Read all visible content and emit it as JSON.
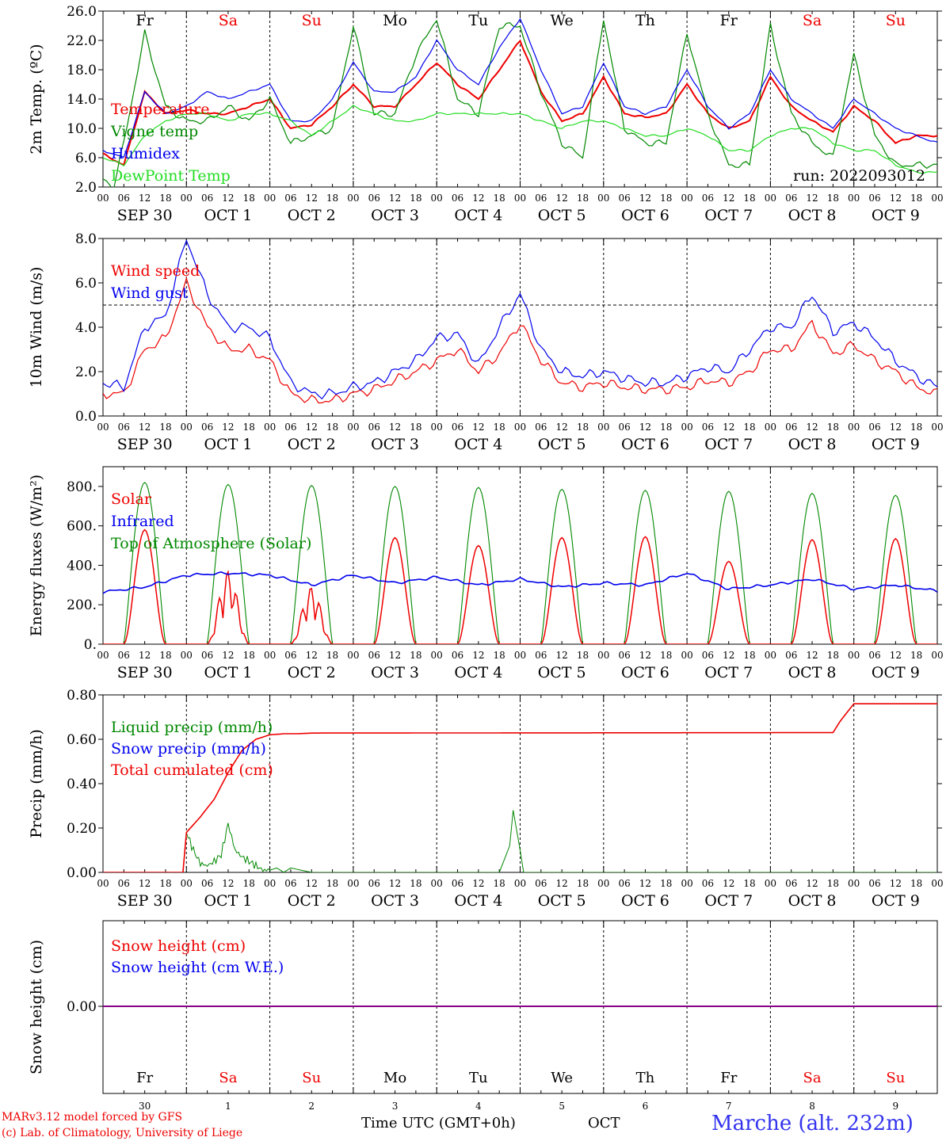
{
  "footer": {
    "credit_line1": "MARv3.12 model forced by GFS",
    "credit_line2": "(c) Lab. of Climatology, University of Liege",
    "time_label": "Time UTC (GMT+0h)",
    "month_label": "OCT",
    "station": "Marche (alt. 232m)"
  },
  "colors": {
    "red": "#ee0000",
    "blue": "#0000ee",
    "green": "#008800",
    "lightgreen": "#22dd22",
    "purple": "#880088",
    "weekend": "#ee0000",
    "weekday": "#000000"
  },
  "hour_ticks": [
    "00",
    "06",
    "12",
    "18"
  ],
  "days": [
    {
      "dow": "Fr",
      "date": "SEP 30",
      "num": "30",
      "weekend": false
    },
    {
      "dow": "Sa",
      "date": "OCT  1",
      "num": "1",
      "weekend": true
    },
    {
      "dow": "Su",
      "date": "OCT  2",
      "num": "2",
      "weekend": true
    },
    {
      "dow": "Mo",
      "date": "OCT  3",
      "num": "3",
      "weekend": false
    },
    {
      "dow": "Tu",
      "date": "OCT  4",
      "num": "4",
      "weekend": false
    },
    {
      "dow": "We",
      "date": "OCT  5",
      "num": "5",
      "weekend": false
    },
    {
      "dow": "Th",
      "date": "OCT  6",
      "num": "6",
      "weekend": false
    },
    {
      "dow": "Fr",
      "date": "OCT  7",
      "num": "7",
      "weekend": false
    },
    {
      "dow": "Sa",
      "date": "OCT  8",
      "num": "8",
      "weekend": true
    },
    {
      "dow": "Su",
      "date": "OCT  9",
      "num": "9",
      "weekend": true
    }
  ],
  "chart_data": [
    {
      "type": "line",
      "ylabel": "2m Temp. (ºC)",
      "ylim": [
        2,
        26
      ],
      "yticks": [
        "2.0",
        "6.0",
        "10.0",
        "14.0",
        "18.0",
        "22.0",
        "26.0"
      ],
      "xlim_hours": [
        0,
        240
      ],
      "annotation": "run: 2022093012",
      "series": [
        {
          "name": "Temperature",
          "color": "red",
          "x": [
            0,
            6,
            12,
            18,
            24,
            30,
            36,
            42,
            48,
            54,
            60,
            66,
            72,
            78,
            84,
            90,
            96,
            102,
            108,
            114,
            120,
            126,
            132,
            138,
            144,
            150,
            156,
            162,
            168,
            174,
            180,
            186,
            192,
            198,
            204,
            210,
            216,
            222,
            228,
            234,
            240
          ],
          "y": [
            6.5,
            5,
            15,
            12,
            12.5,
            12,
            12,
            13,
            14,
            10,
            10.5,
            13,
            16,
            13,
            13,
            16,
            19,
            16,
            14,
            18,
            22,
            15,
            11,
            12,
            17,
            12,
            11.5,
            12,
            16,
            12,
            10,
            11,
            17,
            13,
            11,
            9.5,
            13,
            11,
            8,
            9,
            9
          ]
        },
        {
          "name": "Vigne temp",
          "color": "green",
          "x": [
            0,
            3,
            6,
            12,
            18,
            24,
            30,
            36,
            42,
            48,
            54,
            60,
            66,
            72,
            78,
            84,
            90,
            96,
            102,
            108,
            114,
            120,
            126,
            132,
            138,
            144,
            150,
            156,
            162,
            168,
            174,
            180,
            186,
            192,
            198,
            204,
            210,
            216,
            222,
            228,
            234,
            240
          ],
          "y": [
            3,
            2,
            8,
            23,
            13,
            11,
            11,
            13,
            11,
            14,
            8,
            9,
            10,
            24,
            12,
            12,
            20,
            25,
            14,
            12,
            24,
            24,
            15,
            8,
            6,
            25,
            10,
            8,
            8,
            23,
            12,
            5,
            5,
            24,
            12,
            8,
            6,
            20,
            9,
            5,
            5,
            5
          ]
        },
        {
          "name": "Humidex",
          "color": "blue",
          "x": [
            0,
            6,
            12,
            18,
            24,
            30,
            36,
            42,
            48,
            54,
            60,
            66,
            72,
            78,
            84,
            90,
            96,
            102,
            108,
            114,
            120,
            126,
            132,
            138,
            144,
            150,
            156,
            162,
            168,
            174,
            180,
            186,
            192,
            198,
            204,
            210,
            216,
            222,
            228,
            234,
            240
          ],
          "y": [
            7,
            6,
            15,
            12,
            13,
            15,
            14,
            15,
            16,
            11,
            11,
            14,
            19,
            15,
            15,
            17,
            22,
            18,
            16,
            21,
            25,
            18,
            12,
            13,
            19,
            13,
            12,
            13,
            18,
            13,
            10,
            12,
            18,
            14,
            12,
            10,
            14,
            12,
            10,
            9,
            8
          ]
        },
        {
          "name": "DewPoint Temp",
          "color": "lightgreen",
          "x": [
            0,
            6,
            12,
            18,
            24,
            30,
            36,
            42,
            48,
            54,
            60,
            66,
            72,
            78,
            84,
            90,
            96,
            102,
            108,
            114,
            120,
            126,
            132,
            138,
            144,
            150,
            156,
            162,
            168,
            174,
            180,
            186,
            192,
            198,
            204,
            210,
            216,
            222,
            228,
            234,
            240
          ],
          "y": [
            6,
            5,
            9,
            11,
            12,
            12,
            11,
            12,
            12,
            11,
            9,
            11,
            13,
            12,
            11,
            11,
            12,
            12,
            12,
            12,
            12,
            11,
            10,
            11,
            11,
            10,
            9,
            9,
            10,
            9,
            7,
            7,
            9,
            10,
            10,
            8,
            7,
            7,
            5,
            4,
            4
          ]
        }
      ]
    },
    {
      "type": "line",
      "ylabel": "10m Wind (m/s)",
      "ylim": [
        0,
        8
      ],
      "yticks": [
        "0.0",
        "2.0",
        "4.0",
        "6.0",
        "8.0"
      ],
      "reference_line": 5,
      "xlim_hours": [
        0,
        240
      ],
      "series": [
        {
          "name": "Wind speed",
          "color": "red",
          "x": [
            0,
            6,
            12,
            18,
            24,
            30,
            36,
            42,
            48,
            54,
            60,
            66,
            72,
            78,
            84,
            90,
            96,
            102,
            108,
            114,
            120,
            126,
            132,
            138,
            144,
            150,
            156,
            162,
            168,
            174,
            180,
            186,
            192,
            198,
            204,
            210,
            216,
            222,
            228,
            234,
            240
          ],
          "y": [
            1,
            1,
            3,
            3.5,
            6,
            4,
            3,
            3,
            2.5,
            1,
            0.7,
            0.7,
            1,
            1.2,
            1.6,
            2,
            2.5,
            3,
            2,
            2.8,
            4.2,
            2.5,
            1.5,
            1.3,
            1.5,
            1.3,
            1.2,
            1.2,
            1.3,
            1.6,
            1.5,
            2,
            3,
            3,
            4.2,
            2.8,
            3.2,
            2.5,
            2,
            1.3,
            1
          ]
        },
        {
          "name": "Wind gust",
          "color": "blue",
          "x": [
            0,
            6,
            12,
            18,
            24,
            30,
            36,
            42,
            48,
            54,
            60,
            66,
            72,
            78,
            84,
            90,
            96,
            102,
            108,
            114,
            120,
            126,
            132,
            138,
            144,
            150,
            156,
            162,
            168,
            174,
            180,
            186,
            192,
            198,
            204,
            210,
            216,
            222,
            228,
            234,
            240
          ],
          "y": [
            1.5,
            1.3,
            4,
            4.5,
            8,
            5.5,
            4,
            4,
            3.5,
            1.5,
            1,
            1,
            1.3,
            1.5,
            2,
            2.5,
            3.5,
            3.7,
            2.3,
            4,
            5.5,
            3,
            2,
            1.8,
            2,
            1.7,
            1.5,
            1.5,
            1.8,
            2.2,
            2,
            3,
            4,
            4,
            5.5,
            3.8,
            4.2,
            3.5,
            2.5,
            1.8,
            1.3
          ]
        }
      ]
    },
    {
      "type": "line",
      "ylabel": "Energy fluxes (W/m²)",
      "ylim": [
        0,
        900
      ],
      "yticks": [
        "0.",
        "200.",
        "400.",
        "600.",
        "800."
      ],
      "xlim_hours": [
        0,
        240
      ],
      "solar_peak": [
        580,
        370,
        290,
        540,
        500,
        540,
        545,
        420,
        530,
        535
      ],
      "toa_peak": [
        820,
        810,
        805,
        800,
        795,
        785,
        780,
        775,
        765,
        755
      ],
      "series": [
        {
          "name": "Solar",
          "color": "red"
        },
        {
          "name": "Infrared",
          "color": "blue",
          "x": [
            0,
            12,
            24,
            36,
            48,
            60,
            72,
            84,
            96,
            108,
            120,
            132,
            144,
            156,
            168,
            180,
            192,
            204,
            216,
            228,
            240
          ],
          "y": [
            265,
            290,
            350,
            360,
            350,
            300,
            350,
            310,
            340,
            300,
            330,
            290,
            310,
            300,
            360,
            280,
            300,
            330,
            280,
            300,
            270
          ]
        },
        {
          "name": "Top of Atmosphere (Solar)",
          "color": "green"
        }
      ]
    },
    {
      "type": "line",
      "ylabel": "Precip (mm/h)",
      "ylim": [
        0,
        0.8
      ],
      "yticks": [
        "0.00",
        "0.20",
        "0.40",
        "0.60",
        "0.80"
      ],
      "xlim_hours": [
        0,
        240
      ],
      "series": [
        {
          "name": "Liquid precip (mm/h)",
          "color": "green",
          "x": [
            0,
            23,
            24,
            26,
            28,
            30,
            32,
            34,
            36,
            38,
            40,
            42,
            44,
            46,
            48,
            50,
            52,
            54,
            60,
            114,
            117,
            118,
            120,
            121,
            124,
            240
          ],
          "y": [
            0,
            0,
            0.18,
            0.1,
            0.04,
            0.03,
            0.05,
            0.08,
            0.22,
            0.1,
            0.07,
            0.05,
            0.03,
            0.01,
            0.01,
            0.02,
            0,
            0.02,
            0,
            0,
            0.12,
            0.28,
            0.1,
            0,
            0,
            0
          ]
        },
        {
          "name": "Snow precip (mm/h)",
          "color": "blue"
        },
        {
          "name": "Total cumulated (cm)",
          "color": "red",
          "x": [
            0,
            23,
            24,
            28,
            32,
            36,
            40,
            44,
            48,
            52,
            56,
            60,
            205,
            210,
            212,
            216,
            240
          ],
          "y": [
            0,
            0,
            0.18,
            0.25,
            0.33,
            0.45,
            0.55,
            0.6,
            0.62,
            0.625,
            0.625,
            0.628,
            0.63,
            0.63,
            0.68,
            0.76,
            0.76
          ]
        }
      ]
    },
    {
      "type": "line",
      "ylabel": "Snow height (cm)",
      "yticks": [
        "0.00"
      ],
      "xlim_hours": [
        0,
        240
      ],
      "series": [
        {
          "name": "Snow height (cm)",
          "color": "red",
          "x": [
            0,
            240
          ],
          "y": [
            0,
            0
          ]
        },
        {
          "name": "Snow height (cm W.E.)",
          "color": "blue",
          "x": [
            0,
            240
          ],
          "y": [
            0,
            0
          ]
        }
      ]
    }
  ]
}
